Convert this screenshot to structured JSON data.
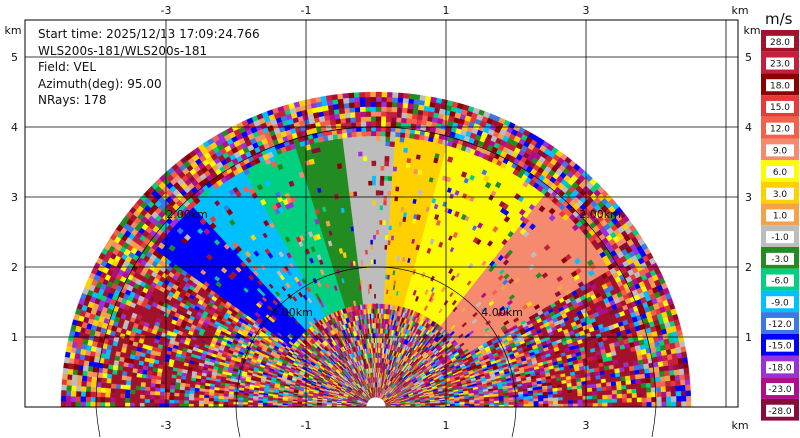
{
  "chart_data": {
    "type": "heatmap",
    "subtype": "radar-rhi-sector",
    "info_lines": [
      "Start time: 2025/12/13 17:09:24.766",
      "WLS200s-181/WLS200s-181",
      "Field: VEL",
      "Azimuth(deg): 95.00",
      "NRays: 178"
    ],
    "x_ticks": [
      -3,
      -1,
      1,
      3
    ],
    "y_ticks": [
      1,
      2,
      3,
      4,
      5
    ],
    "x_unit": "km",
    "y_unit": "km",
    "xlim": [
      -5,
      5
    ],
    "ylim": [
      0,
      6
    ],
    "range_rings_km": [
      2,
      4,
      6
    ],
    "ring_labels": [
      "2.00km",
      "4.00km",
      "2.00km",
      "4.00km"
    ],
    "max_range_km": 4.5,
    "colorbar": {
      "title": "m/s",
      "labels": [
        "28.0",
        "23.0",
        "18.0",
        "15.0",
        "12.0",
        "9.0",
        "6.0",
        "3.0",
        "1.0",
        "-1.0",
        "-3.0",
        "-6.0",
        "-9.0",
        "-12.0",
        "-15.0",
        "-18.0",
        "-23.0",
        "-28.0"
      ],
      "colors": [
        "#a3122a",
        "#c41f3b",
        "#8b0000",
        "#e83838",
        "#f4604a",
        "#f58a6e",
        "#fdfb00",
        "#ffd000",
        "#f2a24a",
        "#bdbdbd",
        "#228b22",
        "#00d080",
        "#00c0ff",
        "#3a78e8",
        "#0000ff",
        "#9b30d8",
        "#b10d8b",
        "#8a0a3a"
      ]
    },
    "sectors": [
      {
        "from_deg": 0,
        "to_deg": 30,
        "value": 28.0
      },
      {
        "from_deg": 30,
        "to_deg": 52,
        "value": 9.0
      },
      {
        "from_deg": 52,
        "to_deg": 75,
        "value": 6.0
      },
      {
        "from_deg": 75,
        "to_deg": 86,
        "value": 3.0
      },
      {
        "from_deg": 86,
        "to_deg": 97,
        "value": -1.0
      },
      {
        "from_deg": 97,
        "to_deg": 107,
        "value": -3.0
      },
      {
        "from_deg": 107,
        "to_deg": 119,
        "value": -6.0
      },
      {
        "from_deg": 119,
        "to_deg": 132,
        "value": -9.0
      },
      {
        "from_deg": 132,
        "to_deg": 145,
        "value": -15.0
      },
      {
        "from_deg": 145,
        "to_deg": 180,
        "value": 28.0
      }
    ]
  }
}
